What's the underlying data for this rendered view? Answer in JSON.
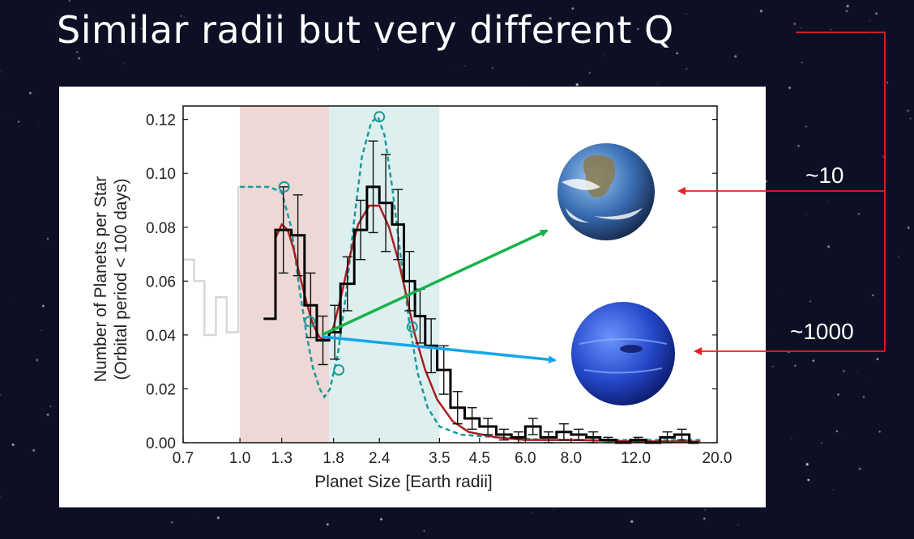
{
  "slide": {
    "title": "Similar radii but very different Q",
    "annotations": [
      {
        "label": "~10",
        "target": "earth-icon"
      },
      {
        "label": "~1000",
        "target": "neptune-icon"
      }
    ],
    "icons": [
      "earth-icon",
      "neptune-icon"
    ],
    "colors": {
      "background": "#0d0f24",
      "title": "#ffffff",
      "bracket": "#e8201e",
      "earth_arrow": "#16b24a",
      "neptune_arrow": "#15a6ea"
    }
  },
  "chart_data": {
    "type": "bar",
    "xlabel": "Planet Size [Earth radii]",
    "ylabel": [
      "Number of Planets per Star",
      "(Orbital period < 100 days)"
    ],
    "x_scale": "log",
    "xlim": [
      0.7,
      20.0
    ],
    "ylim": [
      0.0,
      0.125
    ],
    "x_tick_labels": [
      "0.7",
      "1.0",
      "1.3",
      "1.8",
      "2.4",
      "3.5",
      "4.5",
      "6.0",
      "8.0",
      "12.0",
      "20.0"
    ],
    "x_ticks": [
      0.7,
      1.0,
      1.3,
      1.8,
      2.4,
      3.5,
      4.5,
      6.0,
      8.0,
      12.0,
      20.0
    ],
    "y_tick_labels": [
      "0.00",
      "0.02",
      "0.04",
      "0.06",
      "0.08",
      "0.10",
      "0.12"
    ],
    "y_ticks": [
      0.0,
      0.02,
      0.04,
      0.06,
      0.08,
      0.1,
      0.12
    ],
    "shaded_regions": [
      {
        "x_range": [
          1.0,
          1.75
        ],
        "color": "#eed8d6"
      },
      {
        "x_range": [
          1.75,
          3.5
        ],
        "color": "#ddf0ef"
      }
    ],
    "histogram": {
      "color": "#000000",
      "bins": [
        {
          "x0": 1.16,
          "x1": 1.25,
          "y": 0.046,
          "err": 0.0
        },
        {
          "x0": 1.25,
          "x1": 1.38,
          "y": 0.079,
          "err": 0.016
        },
        {
          "x0": 1.38,
          "x1": 1.5,
          "y": 0.077,
          "err": 0.015
        },
        {
          "x0": 1.5,
          "x1": 1.62,
          "y": 0.051,
          "err": 0.012
        },
        {
          "x0": 1.62,
          "x1": 1.75,
          "y": 0.038,
          "err": 0.009
        },
        {
          "x0": 1.75,
          "x1": 1.88,
          "y": 0.041,
          "err": 0.01
        },
        {
          "x0": 1.88,
          "x1": 2.05,
          "y": 0.059,
          "err": 0.01
        },
        {
          "x0": 2.05,
          "x1": 2.22,
          "y": 0.079,
          "err": 0.011
        },
        {
          "x0": 2.22,
          "x1": 2.4,
          "y": 0.095,
          "err": 0.017
        },
        {
          "x0": 2.4,
          "x1": 2.6,
          "y": 0.089,
          "err": 0.018
        },
        {
          "x0": 2.6,
          "x1": 2.8,
          "y": 0.081,
          "err": 0.013
        },
        {
          "x0": 2.8,
          "x1": 3.0,
          "y": 0.06,
          "err": 0.011
        },
        {
          "x0": 3.0,
          "x1": 3.2,
          "y": 0.047,
          "err": 0.01
        },
        {
          "x0": 3.2,
          "x1": 3.45,
          "y": 0.036,
          "err": 0.01
        },
        {
          "x0": 3.45,
          "x1": 3.75,
          "y": 0.027,
          "err": 0.009
        },
        {
          "x0": 3.75,
          "x1": 4.1,
          "y": 0.013,
          "err": 0.006
        },
        {
          "x0": 4.1,
          "x1": 4.5,
          "y": 0.009,
          "err": 0.004
        },
        {
          "x0": 4.5,
          "x1": 5.0,
          "y": 0.006,
          "err": 0.003
        },
        {
          "x0": 5.0,
          "x1": 5.5,
          "y": 0.003,
          "err": 0.002
        },
        {
          "x0": 5.5,
          "x1": 6.0,
          "y": 0.002,
          "err": 0.002
        },
        {
          "x0": 6.0,
          "x1": 6.6,
          "y": 0.006,
          "err": 0.003
        },
        {
          "x0": 6.6,
          "x1": 7.3,
          "y": 0.002,
          "err": 0.002
        },
        {
          "x0": 7.3,
          "x1": 8.0,
          "y": 0.004,
          "err": 0.003
        },
        {
          "x0": 8.0,
          "x1": 8.8,
          "y": 0.003,
          "err": 0.002
        },
        {
          "x0": 8.8,
          "x1": 9.6,
          "y": 0.002,
          "err": 0.002
        },
        {
          "x0": 9.6,
          "x1": 10.6,
          "y": 0.001,
          "err": 0.001
        },
        {
          "x0": 10.6,
          "x1": 11.6,
          "y": 0.0,
          "err": 0.0
        },
        {
          "x0": 11.6,
          "x1": 12.8,
          "y": 0.001,
          "err": 0.001
        },
        {
          "x0": 12.8,
          "x1": 14.0,
          "y": 0.0,
          "err": 0.0
        },
        {
          "x0": 14.0,
          "x1": 15.3,
          "y": 0.002,
          "err": 0.002
        },
        {
          "x0": 15.3,
          "x1": 16.8,
          "y": 0.003,
          "err": 0.002
        },
        {
          "x0": 16.8,
          "x1": 17.8,
          "y": 0.0,
          "err": 0.0
        }
      ]
    },
    "faded_histogram": {
      "color": "#d7d7d7",
      "points": [
        [
          0.7,
          0.068
        ],
        [
          0.75,
          0.068
        ],
        [
          0.75,
          0.06
        ],
        [
          0.8,
          0.06
        ],
        [
          0.8,
          0.04
        ],
        [
          0.86,
          0.04
        ],
        [
          0.86,
          0.054
        ],
        [
          0.92,
          0.054
        ],
        [
          0.92,
          0.041
        ],
        [
          0.99,
          0.041
        ],
        [
          0.99,
          0.095
        ],
        [
          1.13,
          0.095
        ]
      ]
    },
    "red_curve": {
      "color": "#aa1f1f",
      "points": [
        [
          1.25,
          0.076
        ],
        [
          1.3,
          0.081
        ],
        [
          1.35,
          0.079
        ],
        [
          1.4,
          0.072
        ],
        [
          1.45,
          0.063
        ],
        [
          1.52,
          0.052
        ],
        [
          1.58,
          0.044
        ],
        [
          1.65,
          0.039
        ],
        [
          1.72,
          0.038
        ],
        [
          1.8,
          0.043
        ],
        [
          1.9,
          0.056
        ],
        [
          2.0,
          0.07
        ],
        [
          2.1,
          0.081
        ],
        [
          2.25,
          0.088
        ],
        [
          2.4,
          0.088
        ],
        [
          2.55,
          0.08
        ],
        [
          2.7,
          0.068
        ],
        [
          2.85,
          0.054
        ],
        [
          3.0,
          0.04
        ],
        [
          3.2,
          0.027
        ],
        [
          3.45,
          0.016
        ],
        [
          3.8,
          0.008
        ],
        [
          4.2,
          0.004
        ],
        [
          5.0,
          0.002
        ],
        [
          6.0,
          0.001
        ],
        [
          8.0,
          0.001
        ],
        [
          12.0,
          0.0005
        ],
        [
          18.0,
          0.0004
        ]
      ]
    },
    "teal_dashed_curve": {
      "color": "#1b9a9a",
      "points": [
        [
          1.0,
          0.095
        ],
        [
          1.1,
          0.095
        ],
        [
          1.2,
          0.095
        ],
        [
          1.3,
          0.093
        ],
        [
          1.38,
          0.08
        ],
        [
          1.45,
          0.058
        ],
        [
          1.52,
          0.04
        ],
        [
          1.58,
          0.028
        ],
        [
          1.65,
          0.02
        ],
        [
          1.7,
          0.017
        ],
        [
          1.76,
          0.02
        ],
        [
          1.85,
          0.033
        ],
        [
          1.95,
          0.056
        ],
        [
          2.05,
          0.083
        ],
        [
          2.15,
          0.106
        ],
        [
          2.28,
          0.119
        ],
        [
          2.38,
          0.121
        ],
        [
          2.48,
          0.114
        ],
        [
          2.6,
          0.095
        ],
        [
          2.75,
          0.068
        ],
        [
          2.9,
          0.044
        ],
        [
          3.05,
          0.026
        ],
        [
          3.25,
          0.013
        ],
        [
          3.5,
          0.006
        ],
        [
          4.0,
          0.003
        ],
        [
          5.0,
          0.002
        ],
        [
          7.0,
          0.001
        ],
        [
          10.0,
          0.001
        ],
        [
          14.0,
          0.001
        ],
        [
          18.0,
          0.001
        ]
      ]
    },
    "teal_markers": [
      [
        1.32,
        0.095
      ],
      [
        1.55,
        0.045
      ],
      [
        1.86,
        0.027
      ],
      [
        2.4,
        0.121
      ],
      [
        2.95,
        0.043
      ]
    ]
  }
}
